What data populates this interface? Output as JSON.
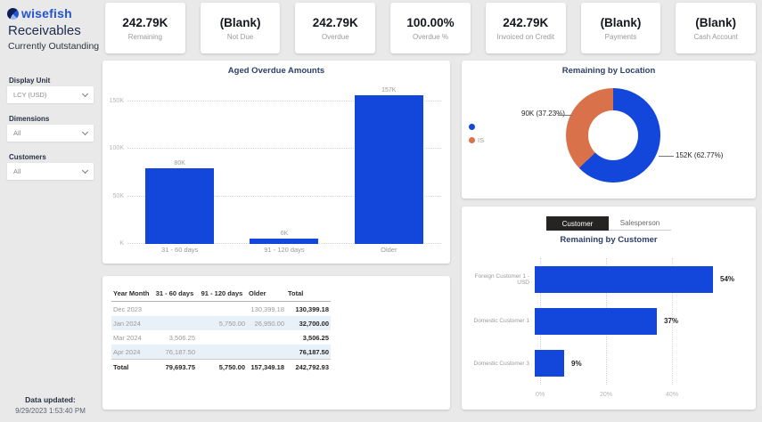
{
  "app": {
    "logo_text": "wisefish",
    "title": "Receivables",
    "subtitle": "Currently Outstanding"
  },
  "filters": [
    {
      "label": "Display Unit",
      "value": "LCY (USD)"
    },
    {
      "label": "Dimensions",
      "value": "All"
    },
    {
      "label": "Customers",
      "value": "All"
    }
  ],
  "kpi_cards": [
    {
      "value": "242.79K",
      "label": "Remaining"
    },
    {
      "value": "(Blank)",
      "label": "Not Due"
    },
    {
      "value": "242.79K",
      "label": "Overdue"
    },
    {
      "value": "100.00%",
      "label": "Overdue %"
    },
    {
      "value": "242.79K",
      "label": "Invoiced on Credit"
    },
    {
      "value": "(Blank)",
      "label": "Payments"
    },
    {
      "value": "(Blank)",
      "label": "Cash Account"
    }
  ],
  "chart_data": [
    {
      "id": "aged_overdue",
      "type": "bar",
      "title": "Aged Overdue Amounts",
      "categories": [
        "31 - 60 days",
        "91 - 120 days",
        "Older"
      ],
      "values": [
        80,
        6,
        157
      ],
      "value_labels": [
        "80K",
        "6K",
        "157K"
      ],
      "unit": "K (thousands LCY)",
      "y_ticks": [
        "150K",
        "100K",
        "50K",
        "K"
      ],
      "ylim": [
        0,
        150
      ],
      "grid": true,
      "bar_color": "#1347db"
    },
    {
      "id": "remaining_by_location",
      "type": "pie",
      "title": "Remaining by Location",
      "legend_position": "left",
      "slices": [
        {
          "label": "",
          "value": 152,
          "pct": 62.77,
          "display": "152K (62.77%)",
          "color": "#1347db"
        },
        {
          "label": "IS",
          "value": 90,
          "pct": 37.23,
          "display": "90K (37.23%)",
          "color": "#d9724a"
        }
      ]
    },
    {
      "id": "remaining_by_customer",
      "type": "bar-horizontal",
      "title": "Remaining by Customer",
      "categories": [
        "Foreign Customer 1 - USD",
        "Domestic Customer 1",
        "Domestic Customer 3"
      ],
      "values": [
        54,
        37,
        9
      ],
      "value_labels": [
        "54%",
        "37%",
        "9%"
      ],
      "x_ticks": [
        "0%",
        "20%",
        "40%"
      ],
      "xlim": [
        0,
        60
      ],
      "grid": true,
      "bar_color": "#1347db"
    }
  ],
  "tabs": {
    "customer": "Customer",
    "salesperson": "Salesperson",
    "active": "Customer"
  },
  "table": {
    "headers": [
      "Year Month",
      "31 - 60 days",
      "91 - 120 days",
      "Older",
      "Total"
    ],
    "rows": [
      [
        "Dec 2023",
        "",
        "",
        "130,399.18",
        "130,399.18"
      ],
      [
        "Jan 2024",
        "",
        "5,750.00",
        "26,950.00",
        "32,700.00"
      ],
      [
        "Mar 2024",
        "3,506.25",
        "",
        "",
        "3,506.25"
      ],
      [
        "Apr 2024",
        "76,187.50",
        "",
        "",
        "76,187.50"
      ],
      [
        "Total",
        "79,693.75",
        "5,750.00",
        "157,349.18",
        "242,792.93"
      ]
    ]
  },
  "footer": {
    "label": "Data updated:",
    "timestamp": "9/29/2023 1:53:40 PM"
  },
  "colors": {
    "accent_blue": "#1347db",
    "accent_orange": "#d9724a"
  }
}
